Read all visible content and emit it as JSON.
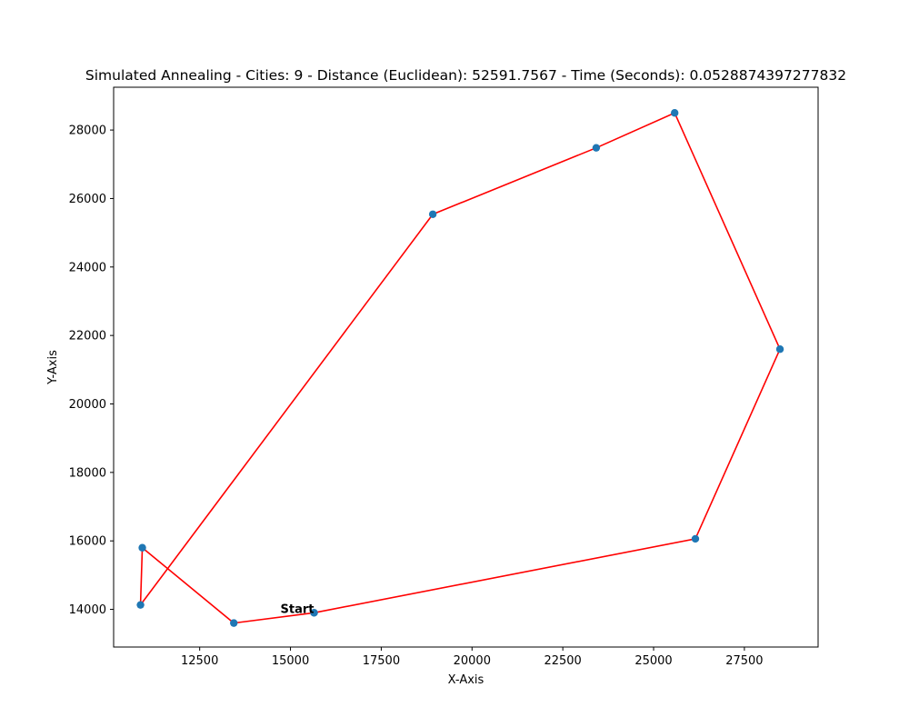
{
  "chart_data": {
    "type": "line",
    "title": "Simulated Annealing - Cities: 9 - Distance (Euclidean): 52591.7567 - Time (Seconds): 0.0528874397277832",
    "xlabel": "X-Axis",
    "ylabel": "Y-Axis",
    "xlim": [
      10130,
      29530
    ],
    "ylim": [
      12900,
      29250
    ],
    "xticks": [
      12500,
      15000,
      17500,
      20000,
      22500,
      25000,
      27500
    ],
    "xtick_labels": [
      "12500",
      "15000",
      "17500",
      "20000",
      "22500",
      "25000",
      "27500"
    ],
    "yticks": [
      14000,
      16000,
      18000,
      20000,
      22000,
      24000,
      26000,
      28000
    ],
    "ytick_labels": [
      "14000",
      "16000",
      "18000",
      "20000",
      "22000",
      "24000",
      "26000",
      "28000"
    ],
    "grid": false,
    "colors": {
      "route": "#ff0000",
      "points": "#1f77b4"
    },
    "series": [
      {
        "x": [
          15650,
          26150,
          28480,
          25580,
          23420,
          18920,
          10870,
          10920,
          13440,
          15650
        ],
        "y": [
          13900,
          16060,
          21600,
          28500,
          27480,
          25540,
          14130,
          15800,
          13600,
          13900
        ]
      }
    ],
    "annotations": [
      {
        "text": "Start",
        "x": 15650,
        "y": 13900
      }
    ]
  }
}
